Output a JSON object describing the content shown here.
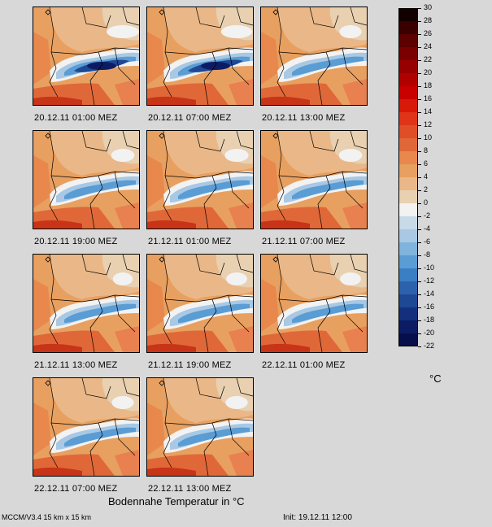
{
  "panels": [
    {
      "label": "20.12.11 01:00 MEZ",
      "cold": 1.0
    },
    {
      "label": "20.12.11 07:00 MEZ",
      "cold": 0.95
    },
    {
      "label": "20.12.11 13:00 MEZ",
      "cold": 0.55
    },
    {
      "label": "20.12.11 19:00 MEZ",
      "cold": 0.6
    },
    {
      "label": "21.12.11 01:00 MEZ",
      "cold": 0.62
    },
    {
      "label": "21.12.11 07:00 MEZ",
      "cold": 0.6
    },
    {
      "label": "21.12.11 13:00 MEZ",
      "cold": 0.45
    },
    {
      "label": "21.12.11 19:00 MEZ",
      "cold": 0.5
    },
    {
      "label": "22.12.11 01:00 MEZ",
      "cold": 0.5
    },
    {
      "label": "22.12.11 07:00 MEZ",
      "cold": 0.55
    },
    {
      "label": "22.12.11 13:00 MEZ",
      "cold": 0.55
    }
  ],
  "colorbar": {
    "unit": "°C",
    "levels": [
      30,
      28,
      26,
      24,
      22,
      20,
      18,
      16,
      14,
      12,
      10,
      8,
      6,
      4,
      2,
      0,
      -2,
      -4,
      -6,
      -8,
      -10,
      -12,
      -14,
      -16,
      -18,
      -20,
      -22
    ],
    "colors": [
      "#120000",
      "#3a0000",
      "#5c0000",
      "#7a0000",
      "#960000",
      "#b00000",
      "#c80000",
      "#d81808",
      "#e03418",
      "#e04e28",
      "#e06838",
      "#e8884c",
      "#e8a060",
      "#eab888",
      "#e8d0b0",
      "#f2f2f2",
      "#c8dae8",
      "#a8c8e4",
      "#80b4dc",
      "#5a9cd4",
      "#3a7ec4",
      "#2c62ac",
      "#1e4894",
      "#14307c",
      "#0c1c64",
      "#060e4c"
    ]
  },
  "chart_data": {
    "type": "heatmap",
    "title": "Bodennahe Temperatur in °C",
    "variable": "Bodennahe Temperatur",
    "unit": "°C",
    "colorbar_range": [
      -22,
      30
    ],
    "colorbar_step": 2,
    "frames": [
      "20.12.11 01:00 MEZ",
      "20.12.11 07:00 MEZ",
      "20.12.11 13:00 MEZ",
      "20.12.11 19:00 MEZ",
      "21.12.11 01:00 MEZ",
      "21.12.11 07:00 MEZ",
      "21.12.11 13:00 MEZ",
      "21.12.11 19:00 MEZ",
      "22.12.11 01:00 MEZ",
      "22.12.11 07:00 MEZ",
      "22.12.11 13:00 MEZ"
    ]
  },
  "footer": {
    "title": "Bodennahe Temperatur in °C",
    "model": "MCCM/V3.4 15 km x 15 km",
    "init": "Init: 19.12.11 12:00"
  }
}
